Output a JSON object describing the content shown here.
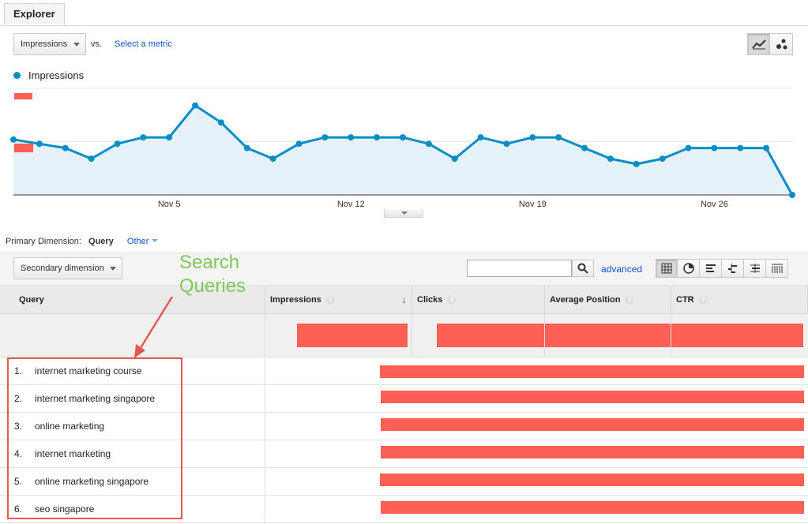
{
  "tab": {
    "label": "Explorer"
  },
  "toolbar": {
    "metric_select": "Impressions",
    "vs_label": "vs.",
    "select_metric_link": "Select a metric"
  },
  "legend": {
    "series_name": "Impressions",
    "color": "#058dc7"
  },
  "chart_data": {
    "type": "area",
    "series": [
      {
        "name": "Impressions",
        "values": [
          52,
          48,
          44,
          34,
          48,
          54,
          54,
          84,
          68,
          44,
          34,
          48,
          54,
          54,
          54,
          54,
          48,
          34,
          54,
          48,
          54,
          54,
          44,
          34,
          29,
          34,
          44,
          44,
          44,
          44,
          0
        ]
      }
    ],
    "x_tick_labels": [
      "Nov 5",
      "Nov 12",
      "Nov 19",
      "Nov 26"
    ],
    "x_tick_index": [
      6,
      13,
      20,
      27
    ],
    "ylim": [
      0,
      100
    ],
    "grid": true,
    "colors": {
      "line": "#058dc7",
      "fill": "#e6f2fa"
    }
  },
  "primary_dimension": {
    "label": "Primary Dimension:",
    "selected": "Query",
    "other": "Other"
  },
  "table_toolbar": {
    "secondary_dimension": "Secondary dimension",
    "search_value": "",
    "advanced_link": "advanced"
  },
  "table": {
    "columns": [
      "Query",
      "Impressions",
      "Clicks",
      "Average Position",
      "CTR"
    ],
    "rows": [
      {
        "index": "1.",
        "query": "internet marketing course"
      },
      {
        "index": "2.",
        "query": "internet marketing singapore"
      },
      {
        "index": "3.",
        "query": "online marketing"
      },
      {
        "index": "4.",
        "query": "internet marketing"
      },
      {
        "index": "5.",
        "query": "online marketing singapore"
      },
      {
        "index": "6.",
        "query": "seo singapore"
      }
    ]
  },
  "annotation": {
    "line1": "Search",
    "line2": "Queries",
    "color": "#7dc75b"
  },
  "redaction_color": "#fe5f55"
}
